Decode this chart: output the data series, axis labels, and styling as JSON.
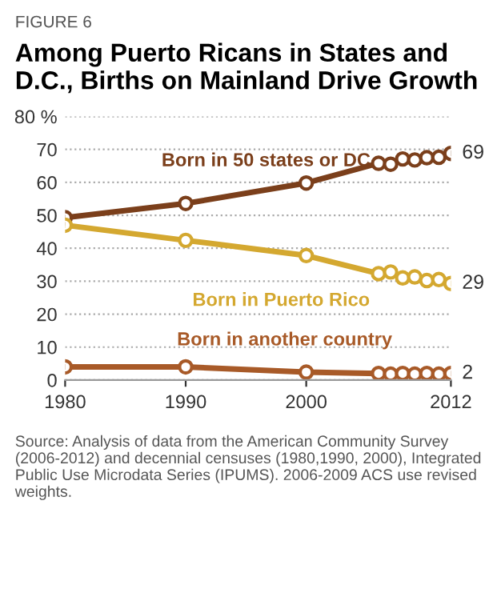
{
  "chart_data": {
    "type": "line",
    "title": "Among Puerto Ricans in States and D.C., Births on Mainland Drive Growth",
    "annotations": [
      "FIGURE 6",
      "Source: Analysis of data from the American Community Survey (2006-2012) and decennial censuses (1980,1990, 2000), Integrated Public Use Microdata Series (IPUMS). 2006-2009 ACS use revised weights."
    ],
    "x": [
      1980,
      1990,
      2000,
      2006,
      2007,
      2008,
      2009,
      2010,
      2011,
      2012
    ],
    "series": [
      {
        "name": "Born in 50 states or DC",
        "color": "#7b3f1b",
        "values": [
          49.3,
          53.6,
          59.8,
          65.8,
          65.5,
          67.1,
          66.8,
          67.5,
          67.6,
          68.8
        ],
        "value_labels": [
          null,
          null,
          null,
          null,
          null,
          null,
          null,
          null,
          null,
          "69"
        ]
      },
      {
        "name": "Born in Puerto Rico",
        "color": "#d4a830",
        "values": [
          47,
          42.4,
          37.8,
          32.3,
          32.8,
          31,
          31.3,
          30.2,
          30.5,
          29.3
        ],
        "value_labels": [
          null,
          null,
          null,
          null,
          null,
          null,
          null,
          null,
          null,
          "29"
        ]
      },
      {
        "name": "Born in another country",
        "color": "#a85a28",
        "values": [
          4,
          4,
          2.4,
          2,
          1.8,
          2,
          1.8,
          2,
          1.8,
          2
        ],
        "value_labels": [
          null,
          null,
          null,
          null,
          null,
          null,
          null,
          null,
          null,
          "2"
        ]
      }
    ],
    "xlim": [
      1980,
      2012
    ],
    "xticks": [
      1980,
      1990,
      2000,
      2012
    ],
    "ylim": [
      0,
      80
    ],
    "yticks": [
      0,
      10,
      20,
      30,
      40,
      50,
      60,
      70,
      {
        "value": 80,
        "label": "80 %"
      }
    ],
    "grid": "y",
    "marker": "circle",
    "line_style": "solid",
    "legend": false
  }
}
